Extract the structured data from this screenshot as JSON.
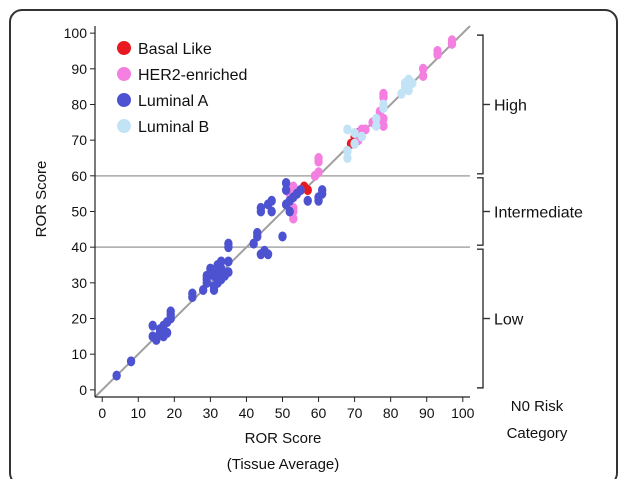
{
  "chart_data": {
    "type": "scatter",
    "xlabel": [
      "ROR Score",
      "(Tissue Average)"
    ],
    "ylabel": "ROR Score",
    "xlim": [
      -2,
      102
    ],
    "ylim": [
      -2,
      102
    ],
    "xticks": [
      0,
      10,
      20,
      30,
      40,
      50,
      60,
      70,
      80,
      90,
      100
    ],
    "yticks": [
      0,
      10,
      20,
      30,
      40,
      50,
      60,
      70,
      80,
      90,
      100
    ],
    "grid": false,
    "legend_position": "top-left",
    "identity_line": true,
    "thresholds": [
      40,
      60
    ],
    "risk_category_title": [
      "N0 Risk",
      "Category"
    ],
    "risk_categories": [
      {
        "label": "High",
        "range": [
          60,
          100
        ]
      },
      {
        "label": "Intermediate",
        "range": [
          40,
          60
        ]
      },
      {
        "label": "Low",
        "range": [
          0,
          40
        ]
      }
    ],
    "series": [
      {
        "name": "Basal Like",
        "color": "#e8191f",
        "points": [
          [
            54,
            55
          ],
          [
            55,
            56
          ],
          [
            56,
            57
          ],
          [
            57,
            56
          ],
          [
            70,
            70
          ],
          [
            70,
            71
          ],
          [
            71,
            72
          ],
          [
            69,
            69
          ]
        ]
      },
      {
        "name": "HER2-enriched",
        "color": "#f47fe0",
        "points": [
          [
            53,
            48
          ],
          [
            53,
            50
          ],
          [
            53,
            51
          ],
          [
            52,
            55
          ],
          [
            53,
            57
          ],
          [
            55,
            56
          ],
          [
            59,
            60
          ],
          [
            60,
            61
          ],
          [
            60,
            64
          ],
          [
            60,
            65
          ],
          [
            68,
            67
          ],
          [
            70,
            69
          ],
          [
            71,
            70
          ],
          [
            72,
            73
          ],
          [
            73,
            73
          ],
          [
            75,
            75
          ],
          [
            77,
            76
          ],
          [
            77,
            78
          ],
          [
            78,
            74
          ],
          [
            78,
            76
          ],
          [
            78,
            82
          ],
          [
            78,
            83
          ],
          [
            89,
            88
          ],
          [
            89,
            90
          ],
          [
            93,
            94
          ],
          [
            93,
            95
          ],
          [
            97,
            97
          ],
          [
            97,
            98
          ]
        ]
      },
      {
        "name": "Luminal A",
        "color": "#4d52d0",
        "points": [
          [
            4,
            4
          ],
          [
            8,
            8
          ],
          [
            14,
            15
          ],
          [
            14,
            18
          ],
          [
            15,
            14
          ],
          [
            16,
            16
          ],
          [
            16,
            17
          ],
          [
            17,
            15
          ],
          [
            17,
            18
          ],
          [
            18,
            16
          ],
          [
            18,
            19
          ],
          [
            19,
            20
          ],
          [
            19,
            21
          ],
          [
            19,
            22
          ],
          [
            25,
            26
          ],
          [
            25,
            27
          ],
          [
            28,
            28
          ],
          [
            29,
            30
          ],
          [
            29,
            31
          ],
          [
            29,
            32
          ],
          [
            30,
            34
          ],
          [
            31,
            32
          ],
          [
            31,
            28
          ],
          [
            31,
            29
          ],
          [
            32,
            30
          ],
          [
            32,
            35
          ],
          [
            32,
            33
          ],
          [
            33,
            31
          ],
          [
            33,
            34
          ],
          [
            33,
            36
          ],
          [
            34,
            32
          ],
          [
            35,
            33
          ],
          [
            35,
            36
          ],
          [
            35,
            40
          ],
          [
            35,
            41
          ],
          [
            42,
            41
          ],
          [
            43,
            43
          ],
          [
            43,
            44
          ],
          [
            44,
            38
          ],
          [
            45,
            39
          ],
          [
            46,
            38
          ],
          [
            44,
            50
          ],
          [
            44,
            51
          ],
          [
            46,
            52
          ],
          [
            47,
            50
          ],
          [
            47,
            53
          ],
          [
            50,
            43
          ],
          [
            51,
            52
          ],
          [
            52,
            50
          ],
          [
            52,
            53
          ],
          [
            51,
            56
          ],
          [
            51,
            58
          ],
          [
            53,
            54
          ],
          [
            54,
            55
          ],
          [
            55,
            56
          ],
          [
            57,
            53
          ],
          [
            60,
            53
          ],
          [
            60,
            54
          ],
          [
            61,
            55
          ],
          [
            61,
            56
          ]
        ]
      },
      {
        "name": "Luminal B",
        "color": "#c2e3f5",
        "points": [
          [
            68,
            65
          ],
          [
            68,
            67
          ],
          [
            68,
            73
          ],
          [
            70,
            69
          ],
          [
            70,
            72
          ],
          [
            72,
            71
          ],
          [
            76,
            76
          ],
          [
            76,
            74
          ],
          [
            78,
            79
          ],
          [
            78,
            80
          ],
          [
            83,
            83
          ],
          [
            84,
            85
          ],
          [
            84,
            86
          ],
          [
            85,
            84
          ],
          [
            85,
            87
          ],
          [
            86,
            86
          ]
        ]
      }
    ]
  }
}
